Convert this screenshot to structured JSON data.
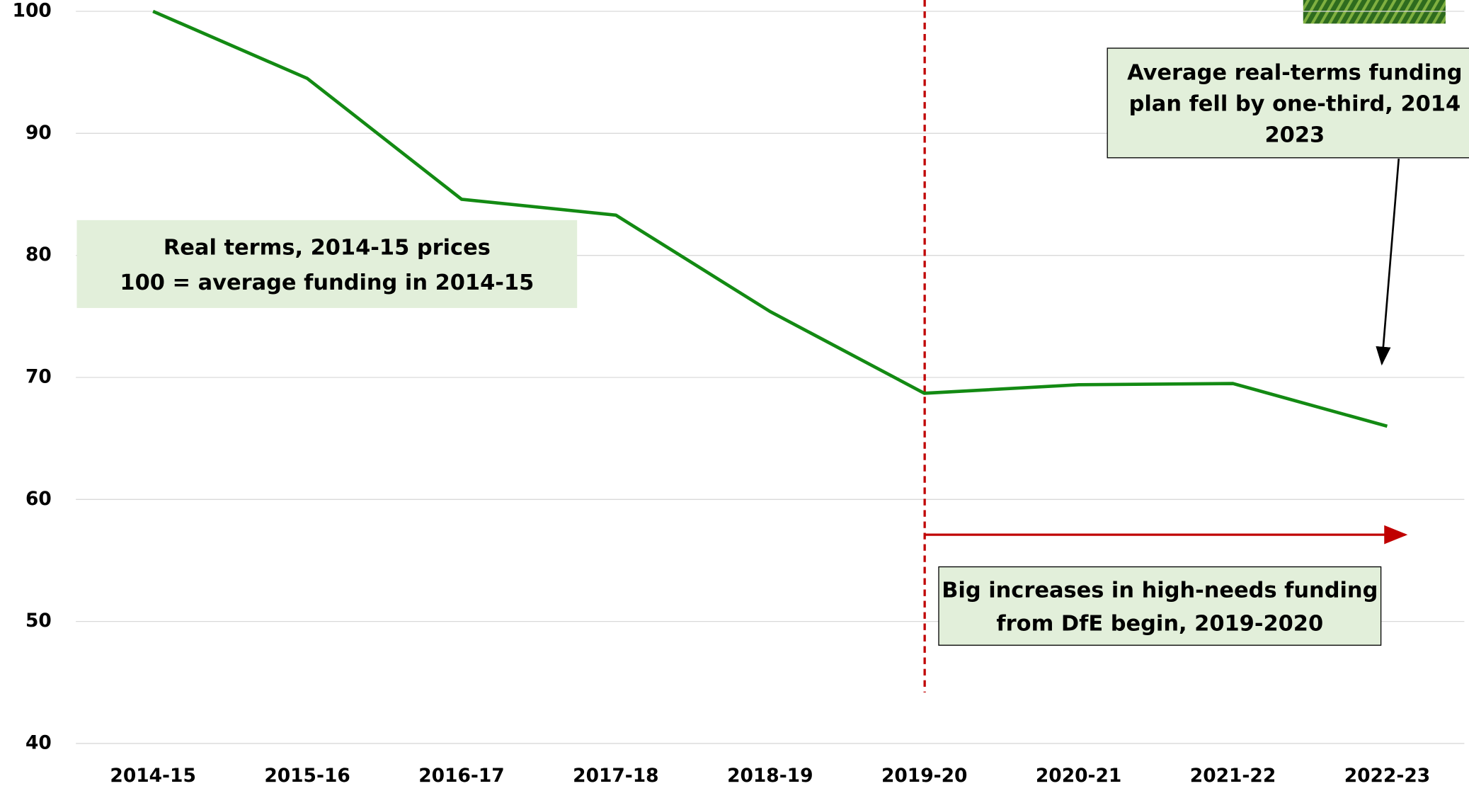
{
  "chart_data": {
    "type": "line",
    "categories": [
      "2014-15",
      "2015-16",
      "2016-17",
      "2017-18",
      "2018-19",
      "2019-20",
      "2020-21",
      "2021-22",
      "2022-23"
    ],
    "values": [
      100,
      94.5,
      84.6,
      83.3,
      75.4,
      68.7,
      69.4,
      69.5,
      66.0
    ],
    "color": "#138a13",
    "ylim": [
      40,
      100
    ],
    "yticks": [
      40,
      50,
      60,
      70,
      80,
      90,
      100
    ],
    "grid": true,
    "annotations": [
      {
        "lines": [
          "Real terms, 2014-15 prices",
          "100 = average funding in 2014-15"
        ]
      },
      {
        "lines": [
          "Average real-terms funding",
          "plan fell by one-third, 2014",
          "2023"
        ]
      },
      {
        "lines": [
          "Big increases in high-needs funding",
          "from DfE begin, 2019-2020"
        ]
      }
    ]
  }
}
